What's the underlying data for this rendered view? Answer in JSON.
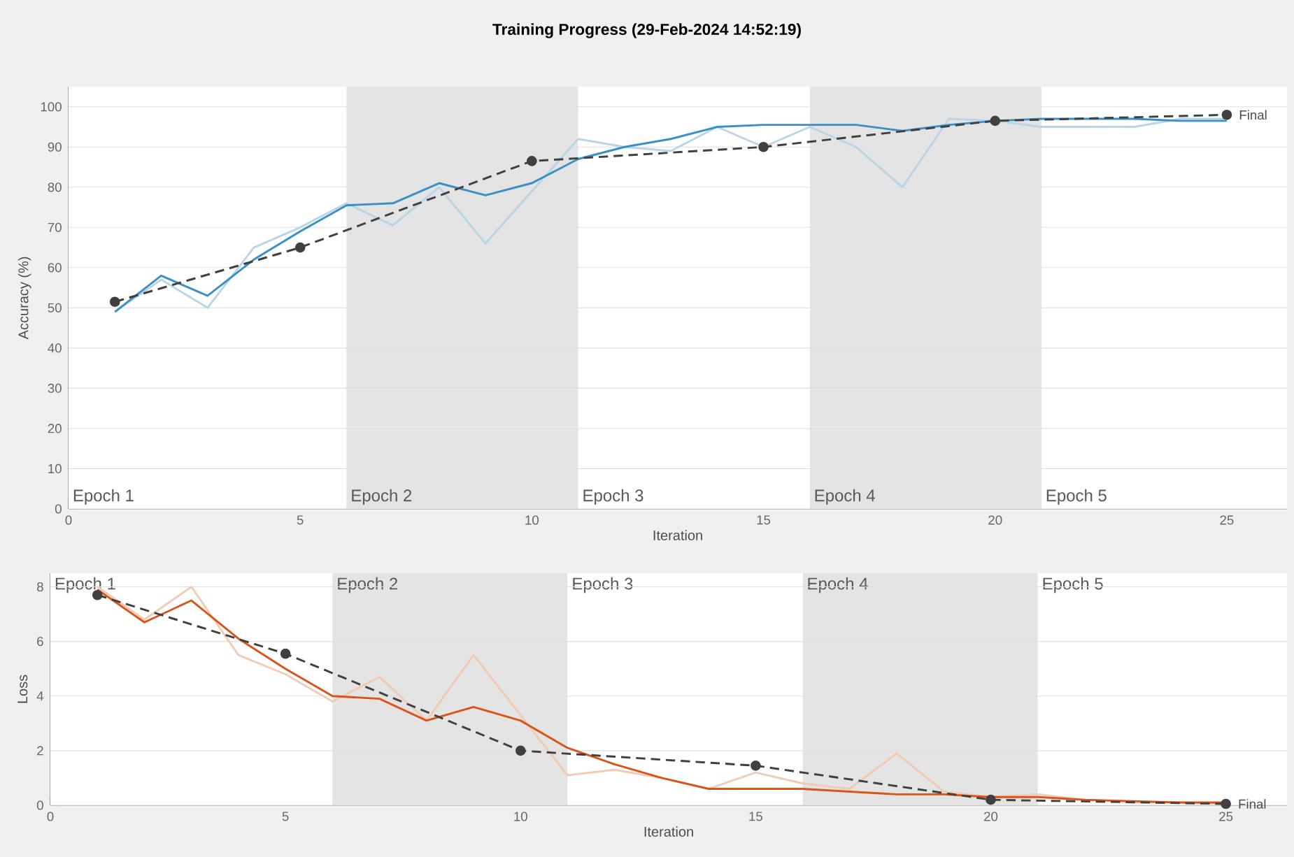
{
  "chart_data": [
    {
      "type": "line",
      "title": "Training Progress (29-Feb-2024 14:52:19)",
      "xlabel": "Iteration",
      "ylabel": "Accuracy (%)",
      "x": [
        1,
        2,
        3,
        4,
        5,
        6,
        7,
        8,
        9,
        10,
        11,
        12,
        13,
        14,
        15,
        16,
        17,
        18,
        19,
        20,
        21,
        22,
        23,
        24,
        25
      ],
      "series": [
        {
          "color": "#b9d5e6",
          "values": [
            49,
            57,
            50,
            65,
            70,
            76,
            70.5,
            80,
            66,
            79,
            92,
            90,
            89,
            95,
            90,
            95,
            90,
            80,
            97,
            96.5,
            95,
            95,
            95,
            97,
            97
          ]
        },
        {
          "color": "#3a8fc4",
          "values": [
            49,
            58,
            53,
            62,
            69,
            75.5,
            76,
            81,
            78,
            81,
            87,
            90,
            92,
            95,
            95.5,
            95.5,
            95.5,
            94,
            95.5,
            96.5,
            97,
            97,
            97,
            96.5,
            96.5
          ]
        },
        {
          "color": "#404040",
          "x": [
            1,
            5,
            10,
            15,
            20,
            25
          ],
          "values": [
            51.5,
            65,
            86.5,
            90,
            96.5,
            98
          ],
          "marker": "circle",
          "line_style": "dashed"
        }
      ],
      "bands": [
        {
          "axis": "x",
          "from": 0,
          "to": 6,
          "label": "Epoch 1",
          "color": "#ffffff"
        },
        {
          "axis": "x",
          "from": 6,
          "to": 11,
          "label": "Epoch 2",
          "color": "#e4e4e4"
        },
        {
          "axis": "x",
          "from": 11,
          "to": 16,
          "label": "Epoch 3",
          "color": "#ffffff"
        },
        {
          "axis": "x",
          "from": 16,
          "to": 21,
          "label": "Epoch 4",
          "color": "#e4e4e4"
        },
        {
          "axis": "x",
          "from": 21,
          "to": 26.3,
          "label": "Epoch 5",
          "color": "#ffffff"
        }
      ],
      "annotations": [
        {
          "text": "Final",
          "x": 25,
          "y": 98
        }
      ],
      "xlim": [
        0,
        26.3
      ],
      "ylim": [
        0,
        105
      ],
      "xticks": [
        0,
        5,
        10,
        15,
        20,
        25
      ],
      "yticks": [
        0,
        10,
        20,
        30,
        40,
        50,
        60,
        70,
        80,
        90,
        100
      ],
      "grid": "y"
    },
    {
      "type": "line",
      "xlabel": "Iteration",
      "ylabel": "Loss",
      "x": [
        1,
        2,
        3,
        4,
        5,
        6,
        7,
        8,
        9,
        10,
        11,
        12,
        13,
        14,
        15,
        16,
        17,
        18,
        19,
        20,
        21,
        22,
        23,
        24,
        25
      ],
      "series": [
        {
          "color": "#f2cbb5",
          "values": [
            8.0,
            6.8,
            8.0,
            5.5,
            4.8,
            3.8,
            4.7,
            3.1,
            5.5,
            3.3,
            1.1,
            1.3,
            1.0,
            0.6,
            1.2,
            0.8,
            0.6,
            1.9,
            0.5,
            0.3,
            0.4,
            0.2,
            0.1,
            0.1,
            0.05
          ]
        },
        {
          "color": "#d9541a",
          "values": [
            7.9,
            6.7,
            7.5,
            6.1,
            5.0,
            4.0,
            3.9,
            3.1,
            3.6,
            3.1,
            2.1,
            1.5,
            1.0,
            0.6,
            0.6,
            0.6,
            0.5,
            0.4,
            0.4,
            0.3,
            0.3,
            0.2,
            0.15,
            0.1,
            0.1
          ]
        },
        {
          "color": "#404040",
          "x": [
            1,
            5,
            10,
            15,
            20,
            25
          ],
          "values": [
            7.7,
            5.55,
            2.0,
            1.45,
            0.2,
            0.05
          ],
          "marker": "circle",
          "line_style": "dashed"
        }
      ],
      "bands": [
        {
          "axis": "x",
          "from": 0,
          "to": 6,
          "label": "Epoch 1",
          "color": "#ffffff"
        },
        {
          "axis": "x",
          "from": 6,
          "to": 11,
          "label": "Epoch 2",
          "color": "#e4e4e4"
        },
        {
          "axis": "x",
          "from": 11,
          "to": 16,
          "label": "Epoch 3",
          "color": "#ffffff"
        },
        {
          "axis": "x",
          "from": 16,
          "to": 21,
          "label": "Epoch 4",
          "color": "#e4e4e4"
        },
        {
          "axis": "x",
          "from": 21,
          "to": 26.3,
          "label": "Epoch 5",
          "color": "#ffffff"
        }
      ],
      "annotations": [
        {
          "text": "Final",
          "x": 25,
          "y": 0.05
        }
      ],
      "xlim": [
        0,
        26.3
      ],
      "ylim": [
        0,
        8.5
      ],
      "xticks": [
        0,
        5,
        10,
        15,
        20,
        25
      ],
      "yticks": [
        0,
        2,
        4,
        6,
        8
      ],
      "grid": "y"
    }
  ]
}
